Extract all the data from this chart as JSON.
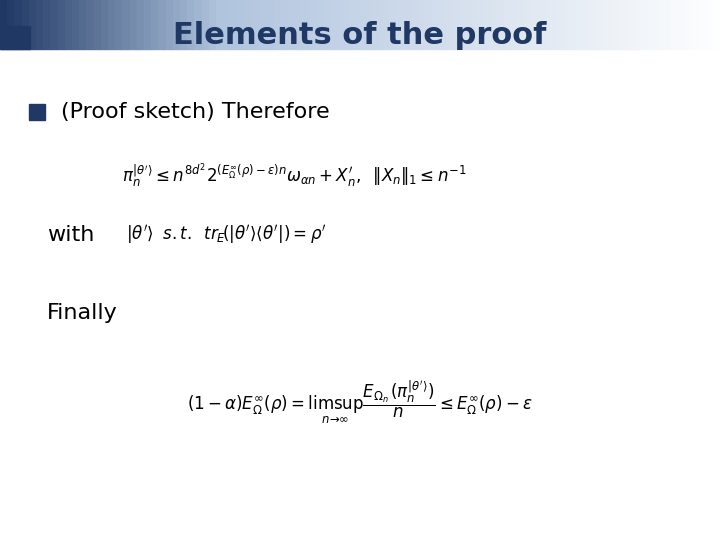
{
  "title": "Elements of the proof",
  "title_color": "#1F3864",
  "title_fontsize": 22,
  "background_color": "#FFFFFF",
  "bullet_text": "(Proof sketch) Therefore",
  "bullet_color": "#1F3864",
  "bullet_fontsize": 16,
  "with_text": "with",
  "finally_text": "Finally",
  "slide_bg": "#FFFFFF",
  "corner_square_color": "#1F3864",
  "bar_height": 0.09,
  "n_steps": 100
}
